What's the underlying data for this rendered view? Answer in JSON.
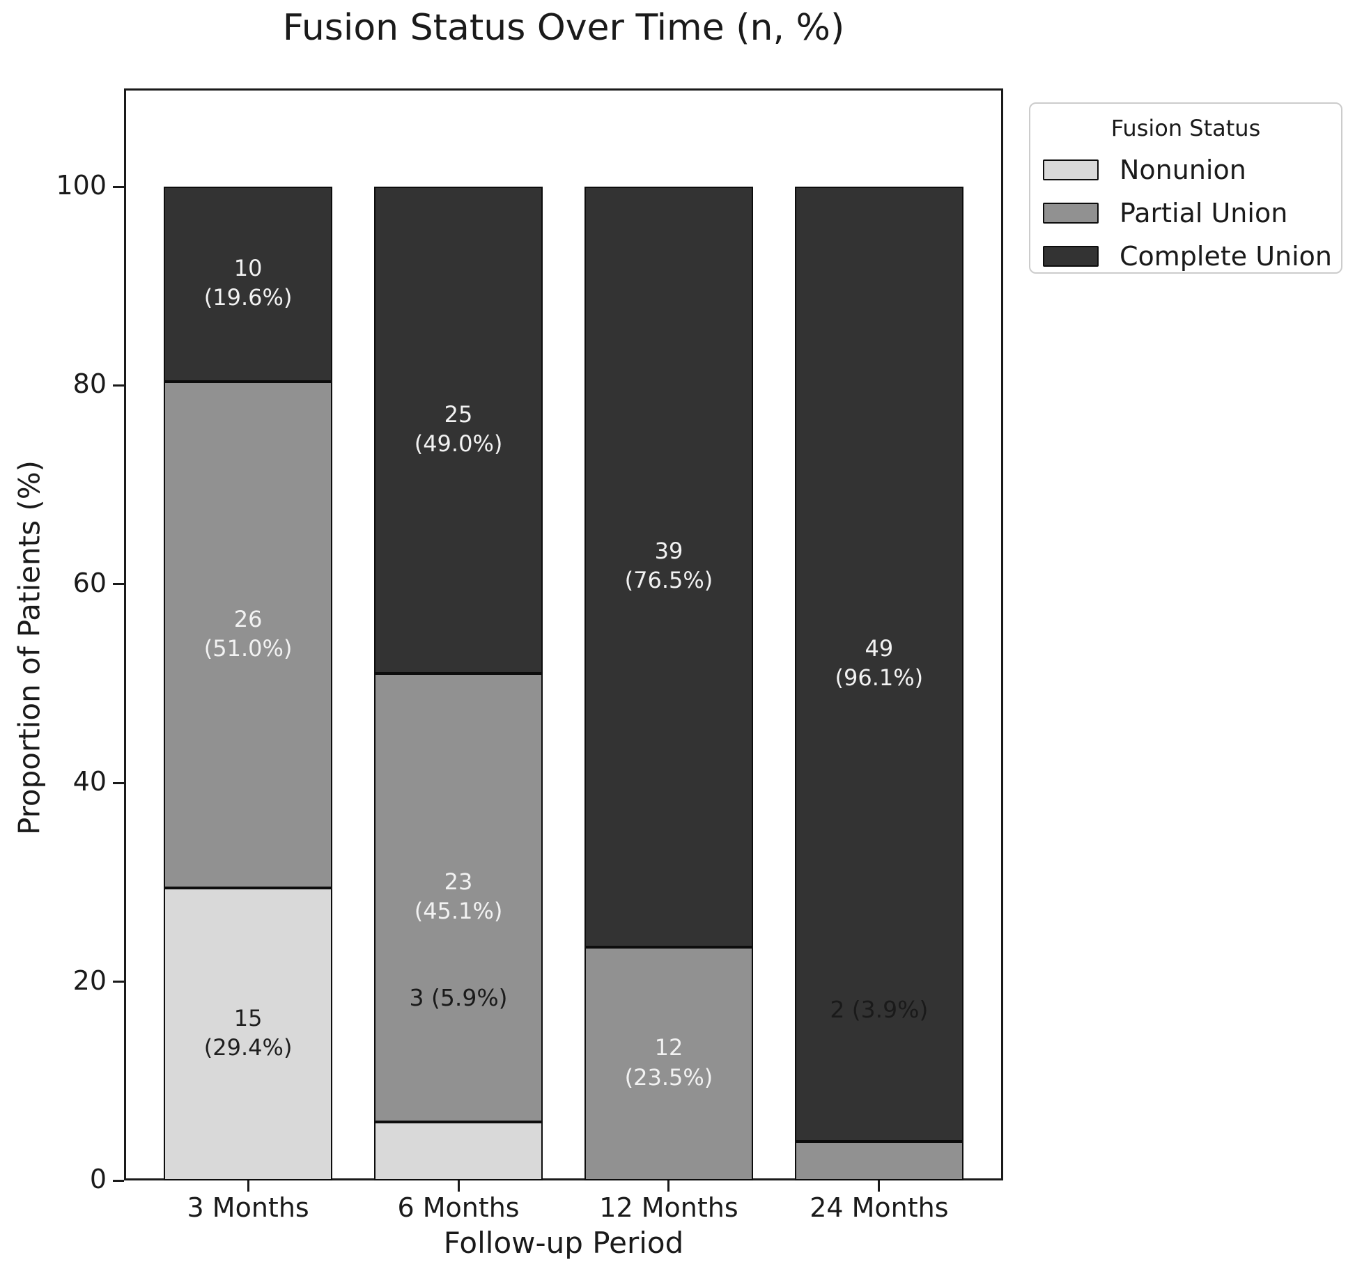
{
  "chart_data": {
    "type": "stacked_bar",
    "title": "Fusion Status Over Time (n, %)",
    "xlabel": "Follow-up Period",
    "ylabel": "Proportion of Patients (%)",
    "ylim": [
      0,
      110
    ],
    "yticks": [
      0,
      20,
      40,
      60,
      80,
      100
    ],
    "categories": [
      "3 Months",
      "6 Months",
      "12 Months",
      "24 Months"
    ],
    "legend": {
      "title": "Fusion Status",
      "entries": [
        "Nonunion",
        "Partial Union",
        "Complete Union"
      ]
    },
    "series": [
      {
        "name": "Nonunion",
        "color": "#d9d9d9",
        "label_color": "#1f1f1f",
        "counts": [
          15,
          3,
          0,
          0
        ],
        "percents": [
          29.4,
          5.9,
          0,
          0
        ]
      },
      {
        "name": "Partial Union",
        "color": "#919191",
        "label_color": "#f2f2f2",
        "counts": [
          26,
          23,
          12,
          2
        ],
        "percents": [
          51.0,
          45.1,
          23.5,
          3.9
        ]
      },
      {
        "name": "Complete Union",
        "color": "#333333",
        "label_color": "#f2f2f2",
        "counts": [
          10,
          25,
          39,
          49
        ],
        "percents": [
          19.6,
          49.0,
          76.5,
          96.1
        ]
      }
    ],
    "bar_labels": [
      {
        "bar": 0,
        "series": 0,
        "lines": [
          "15",
          "(29.4%)"
        ]
      },
      {
        "bar": 0,
        "series": 1,
        "lines": [
          "26",
          "(51.0%)"
        ]
      },
      {
        "bar": 0,
        "series": 2,
        "lines": [
          "10",
          "(19.6%)"
        ]
      },
      {
        "bar": 1,
        "series": 1,
        "lines": [
          "23",
          "(45.1%)"
        ]
      },
      {
        "bar": 1,
        "series": 2,
        "lines": [
          "25",
          "(49.0%)"
        ]
      },
      {
        "bar": 2,
        "series": 1,
        "lines": [
          "12",
          "(23.5%)"
        ]
      },
      {
        "bar": 2,
        "series": 2,
        "lines": [
          "39",
          "(76.5%)"
        ]
      },
      {
        "bar": 3,
        "series": 2,
        "lines": [
          "49",
          "(96.1%)"
        ]
      }
    ],
    "annotations": [
      {
        "text": "3 (5.9%)",
        "bar": 1,
        "series": 0
      },
      {
        "text": "2 (3.9%)",
        "bar": 3,
        "series": 1
      }
    ]
  }
}
